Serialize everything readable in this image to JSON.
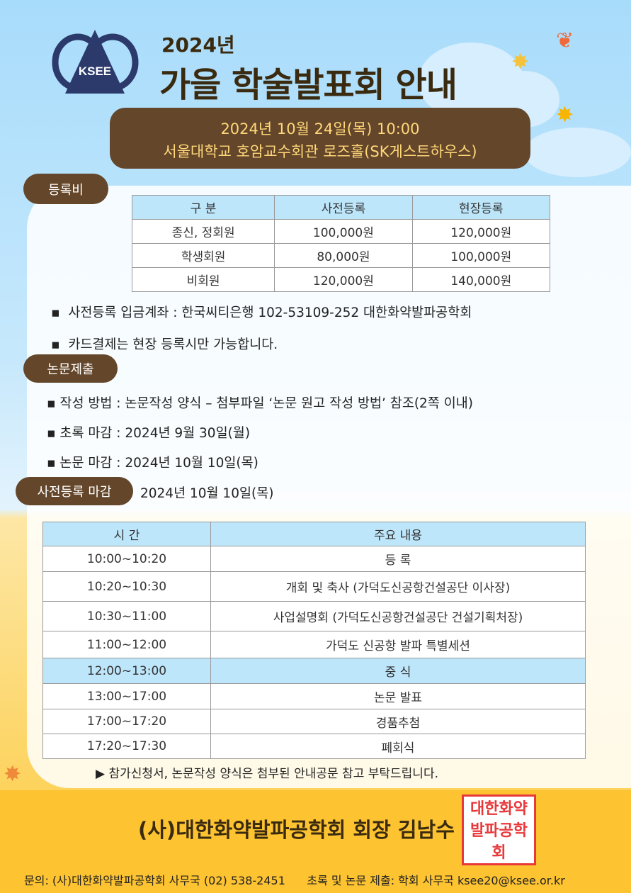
{
  "header": {
    "logo_text": "KSEE",
    "year": "2024년",
    "title": "가을 학술발표회 안내"
  },
  "event": {
    "datetime": "2024년 10월 24일(목) 10:00",
    "venue": "서울대학교 호암교수회관 로즈홀(SK게스트하우스)"
  },
  "fee": {
    "label": "등록비",
    "headers": [
      "구 분",
      "사전등록",
      "현장등록"
    ],
    "rows": [
      [
        "종신, 정회원",
        "100,000원",
        "120,000원"
      ],
      [
        "학생회원",
        "80,000원",
        "100,000원"
      ],
      [
        "비회원",
        "120,000원",
        "140,000원"
      ]
    ],
    "notes": [
      "사전등록 입금계좌 : 한국씨티은행 102-53109-252 대한화약발파공학회",
      "카드결제는 현장 등록시만 가능합니다."
    ]
  },
  "paper": {
    "label": "논문제출",
    "items": [
      "작성 방법 : 논문작성 양식 – 첨부파일 ‘논문 원고 작성 방법’ 참조(2쪽 이내)",
      "초록 마감 : 2024년 9월 30일(월)",
      "논문 마감 : 2024년 10월 10일(목)"
    ]
  },
  "deadline": {
    "label": "사전등록 마감",
    "value": "2024년 10월 10일(목)"
  },
  "schedule": {
    "headers": [
      "시 간",
      "주요 내용"
    ],
    "rows": [
      [
        "10:00~10:20",
        "등 록"
      ],
      [
        "10:20~10:30",
        "개회 및 축사 (가덕도신공항건설공단 이사장)"
      ],
      [
        "10:30~11:00",
        "사업설명회 (가덕도신공항건설공단  건설기획처장)"
      ],
      [
        "11:00~12:00",
        "가덕도 신공항 발파 특별세션"
      ],
      [
        "12:00~13:00",
        "중 식"
      ],
      [
        "13:00~17:00",
        "논문 발표"
      ],
      [
        "17:00~17:20",
        "경품추첨"
      ],
      [
        "17:20~17:30",
        "폐회식"
      ]
    ]
  },
  "note": "▶  참가신청서, 논문작성 양식은 첨부된 안내공문 참고 부탁드립니다.",
  "footer": {
    "president": "(사)대한화약발파공학회 회장 김남수",
    "seal_text": "대한화약발파공학회",
    "contact": "문의: (사)대한화약발파공학회 사무국 (02) 538-2451      초록 및 논문 제출: 학회 사무국 ksee20@ksee.or.kr"
  },
  "colors": {
    "brown": "#64462a",
    "gold_text": "#ffd77a",
    "table_header": "#bde6fb",
    "footer": "#fdc330",
    "seal": "#e8383a"
  }
}
